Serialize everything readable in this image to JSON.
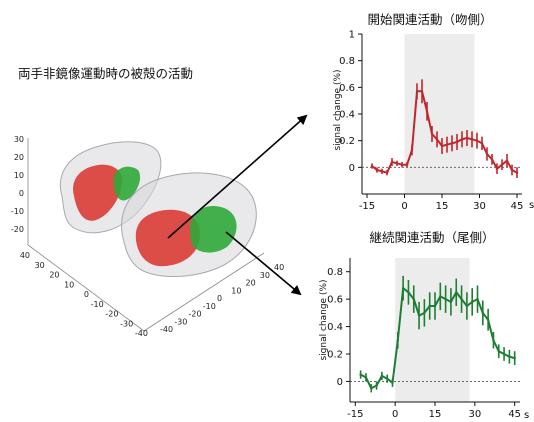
{
  "brain_figure": {
    "title": "両手非鏡像運動時の被殻の活動",
    "axis_z_ticks": [
      "30",
      "20",
      "10",
      "0",
      "-10",
      "-20"
    ],
    "axis_left_ticks": [
      "40",
      "30",
      "20",
      "10",
      "0",
      "-10",
      "-20",
      "-30",
      "-40"
    ],
    "axis_right_ticks": [
      "40",
      "30",
      "20",
      "10",
      "0",
      "-10",
      "-20",
      "-30",
      "-40"
    ],
    "colors": {
      "hull": "#c8c8cc",
      "red_activation": "#d9312a",
      "green_activation": "#2fa838",
      "arrow": "#000000"
    }
  },
  "chart_data": [
    {
      "type": "line",
      "title": "開始関連活動（吻側）",
      "ylabel": "signal change (%)",
      "x_unit_label": "s",
      "xlim": [
        -17,
        47
      ],
      "ylim": [
        -0.2,
        1.0
      ],
      "yticks": [
        0,
        0.2,
        0.4,
        0.6,
        0.8,
        1
      ],
      "ytick_labels": [
        "0",
        "0.2",
        "0.4",
        "0.6",
        "0.8",
        "1"
      ],
      "xticks": [
        -15,
        0,
        15,
        30,
        45
      ],
      "xtick_labels": [
        "-15",
        "0",
        "15",
        "30",
        "45"
      ],
      "shaded_region": [
        0,
        28
      ],
      "baseline": 0,
      "color": "#c0272d",
      "series": [
        {
          "x": [
            -13,
            -11,
            -9,
            -7,
            -5,
            -3,
            -1,
            1,
            3,
            5,
            7,
            9,
            11,
            13,
            15,
            17,
            19,
            21,
            23,
            25,
            27,
            29,
            31,
            33,
            35,
            37,
            39,
            41,
            43,
            45
          ],
          "y": [
            0.01,
            -0.02,
            -0.03,
            -0.04,
            0.04,
            0.03,
            0.02,
            0.02,
            0.13,
            0.57,
            0.57,
            0.42,
            0.25,
            0.21,
            0.16,
            0.17,
            0.18,
            0.19,
            0.21,
            0.22,
            0.21,
            0.2,
            0.18,
            0.1,
            0.06,
            -0.01,
            0.02,
            0.05,
            -0.02,
            -0.04
          ],
          "err": [
            0.02,
            0.02,
            0.02,
            0.02,
            0.03,
            0.02,
            0.02,
            0.02,
            0.04,
            0.06,
            0.09,
            0.07,
            0.06,
            0.06,
            0.06,
            0.06,
            0.06,
            0.06,
            0.06,
            0.06,
            0.06,
            0.06,
            0.05,
            0.05,
            0.04,
            0.04,
            0.04,
            0.05,
            0.04,
            0.04
          ]
        }
      ]
    },
    {
      "type": "line",
      "title": "継続関連活動（尾側）",
      "ylabel": "signal change (%)",
      "x_unit_label": "s",
      "xlim": [
        -17,
        47
      ],
      "ylim": [
        -0.15,
        0.9
      ],
      "yticks": [
        0,
        0.2,
        0.4,
        0.6,
        0.8
      ],
      "ytick_labels": [
        "0",
        "0.2",
        "0.4",
        "0.6",
        "0.8"
      ],
      "xticks": [
        -15,
        0,
        15,
        30,
        45
      ],
      "xtick_labels": [
        "-15",
        "0",
        "15",
        "30",
        "45"
      ],
      "shaded_region": [
        0,
        28
      ],
      "baseline": 0,
      "color": "#1e7d34",
      "series": [
        {
          "x": [
            -13,
            -11,
            -9,
            -7,
            -5,
            -3,
            -1,
            1,
            3,
            5,
            7,
            9,
            11,
            13,
            15,
            17,
            19,
            21,
            23,
            25,
            27,
            29,
            31,
            33,
            35,
            37,
            39,
            41,
            43,
            45
          ],
          "y": [
            0.05,
            0.03,
            -0.05,
            -0.03,
            0.04,
            0.02,
            -0.01,
            0.3,
            0.68,
            0.65,
            0.6,
            0.48,
            0.5,
            0.55,
            0.55,
            0.62,
            0.6,
            0.58,
            0.65,
            0.6,
            0.55,
            0.58,
            0.6,
            0.5,
            0.45,
            0.3,
            0.22,
            0.2,
            0.18,
            0.17
          ],
          "err": [
            0.03,
            0.03,
            0.03,
            0.03,
            0.03,
            0.03,
            0.03,
            0.06,
            0.09,
            0.09,
            0.1,
            0.1,
            0.1,
            0.1,
            0.1,
            0.1,
            0.1,
            0.1,
            0.1,
            0.1,
            0.1,
            0.1,
            0.1,
            0.09,
            0.08,
            0.06,
            0.05,
            0.05,
            0.05,
            0.05
          ]
        }
      ]
    }
  ]
}
